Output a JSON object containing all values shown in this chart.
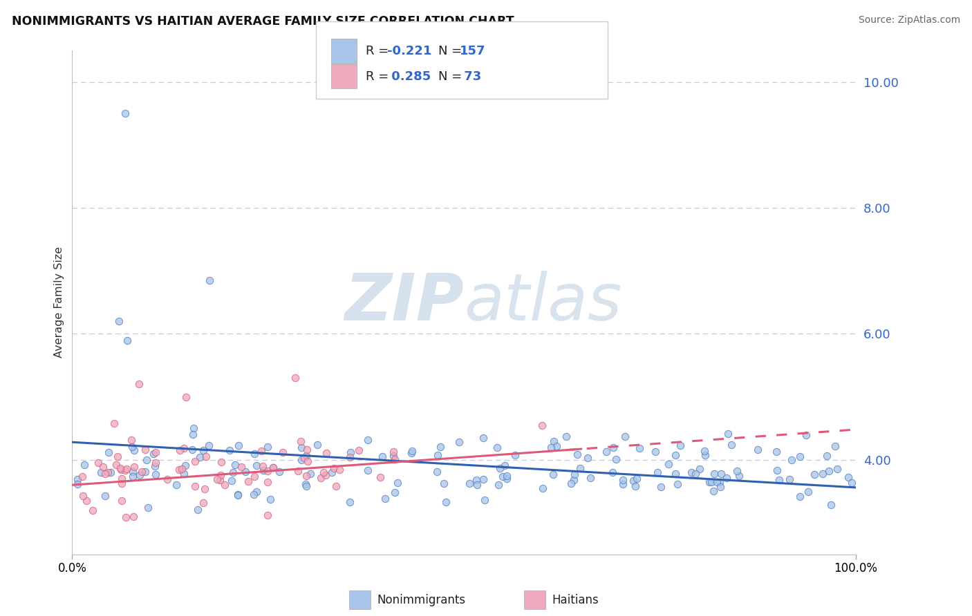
{
  "title": "NONIMMIGRANTS VS HAITIAN AVERAGE FAMILY SIZE CORRELATION CHART",
  "source_text": "Source: ZipAtlas.com",
  "ylabel": "Average Family Size",
  "xlim": [
    0,
    1
  ],
  "ylim": [
    2.5,
    10.5
  ],
  "right_yticks": [
    10.0,
    8.0,
    6.0,
    4.0
  ],
  "background_color": "#ffffff",
  "grid_color": "#c8c8d8",
  "blue_fill": "#a8c4e8",
  "blue_edge": "#5080c0",
  "blue_line": "#3060b0",
  "pink_fill": "#f0a8bc",
  "pink_edge": "#d06080",
  "pink_line": "#e05878",
  "legend_text_color": "#3366cc",
  "watermark_color": "#d0dff0",
  "blue_label_color": "#5588cc",
  "pink_label_color": "#dd6688"
}
